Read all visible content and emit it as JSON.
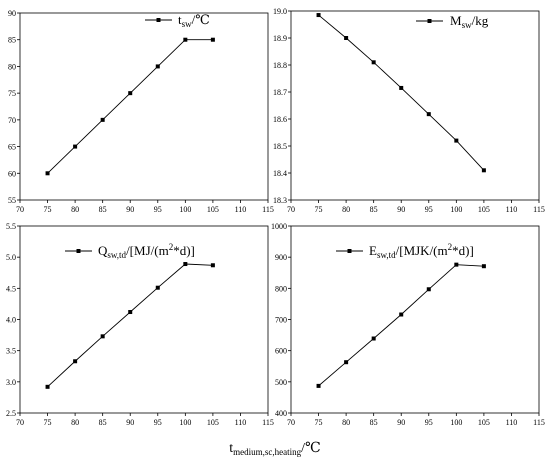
{
  "chart_data": [
    {
      "type": "line",
      "x": [
        75,
        80,
        85,
        90,
        95,
        100,
        105
      ],
      "series": [
        {
          "name": "t_sw/℃",
          "values": [
            60,
            65,
            70,
            75,
            80,
            85,
            85
          ]
        }
      ],
      "xlim": [
        70,
        115
      ],
      "ylim": [
        55,
        90
      ],
      "xticks": [
        "70",
        "75",
        "80",
        "85",
        "90",
        "95",
        "100",
        "105",
        "110",
        "115"
      ],
      "yticks": [
        "55",
        "60",
        "65",
        "70",
        "75",
        "80",
        "85",
        "90"
      ],
      "legend": {
        "main": "t",
        "sub": "sw",
        "rest": "/℃",
        "placement": "top-right"
      },
      "grid": false,
      "marker": "square"
    },
    {
      "type": "line",
      "x": [
        75,
        80,
        85,
        90,
        95,
        100,
        105
      ],
      "series": [
        {
          "name": "M_sw/kg",
          "values": [
            18.985,
            18.9,
            18.81,
            18.715,
            18.618,
            18.52,
            18.41
          ]
        }
      ],
      "xlim": [
        70,
        115
      ],
      "ylim": [
        18.3,
        19.0
      ],
      "xticks": [
        "70",
        "75",
        "80",
        "85",
        "90",
        "95",
        "100",
        "105",
        "110",
        "115"
      ],
      "yticks": [
        "18.3",
        "18.4",
        "18.5",
        "18.6",
        "18.7",
        "18.8",
        "18.9",
        "19.0"
      ],
      "legend": {
        "main": "M",
        "sub": "sw",
        "rest": "/kg",
        "placement": "top-right"
      },
      "grid": false,
      "marker": "square"
    },
    {
      "type": "line",
      "x": [
        75,
        80,
        85,
        90,
        95,
        100,
        105
      ],
      "series": [
        {
          "name": "Q_sw,td/[MJ/(m2*d)]",
          "values": [
            2.92,
            3.33,
            3.73,
            4.12,
            4.51,
            4.89,
            4.87
          ]
        }
      ],
      "xlim": [
        70,
        115
      ],
      "ylim": [
        2.5,
        5.5
      ],
      "xticks": [
        "70",
        "75",
        "80",
        "85",
        "90",
        "95",
        "100",
        "105",
        "110",
        "115"
      ],
      "yticks": [
        "2.5",
        "3.0",
        "3.5",
        "4.0",
        "4.5",
        "5.0",
        "5.5"
      ],
      "legend": {
        "main": "Q",
        "sub": "sw,td",
        "rest": "/[MJ/(m",
        "sup": "2",
        "tail": "*d)]",
        "placement": "top-right"
      },
      "grid": false,
      "marker": "square"
    },
    {
      "type": "line",
      "x": [
        75,
        80,
        85,
        90,
        95,
        100,
        105
      ],
      "series": [
        {
          "name": "E_sw,td/[MJK/(m2*d)]",
          "values": [
            487,
            563,
            639,
            716,
            797,
            876,
            871
          ]
        }
      ],
      "xlim": [
        70,
        115
      ],
      "ylim": [
        400,
        1000
      ],
      "xticks": [
        "70",
        "75",
        "80",
        "85",
        "90",
        "95",
        "100",
        "105",
        "110",
        "115"
      ],
      "yticks": [
        "400",
        "500",
        "600",
        "700",
        "800",
        "900",
        "1000"
      ],
      "legend": {
        "main": "E",
        "sub": "sw,td",
        "rest": "/[MJK/(m",
        "sup": "2",
        "tail": "*d)]",
        "placement": "top-right"
      },
      "grid": false,
      "marker": "square"
    }
  ],
  "xlabel": {
    "main": "t",
    "sub": "medium,sc,heating",
    "rest": "/℃"
  }
}
